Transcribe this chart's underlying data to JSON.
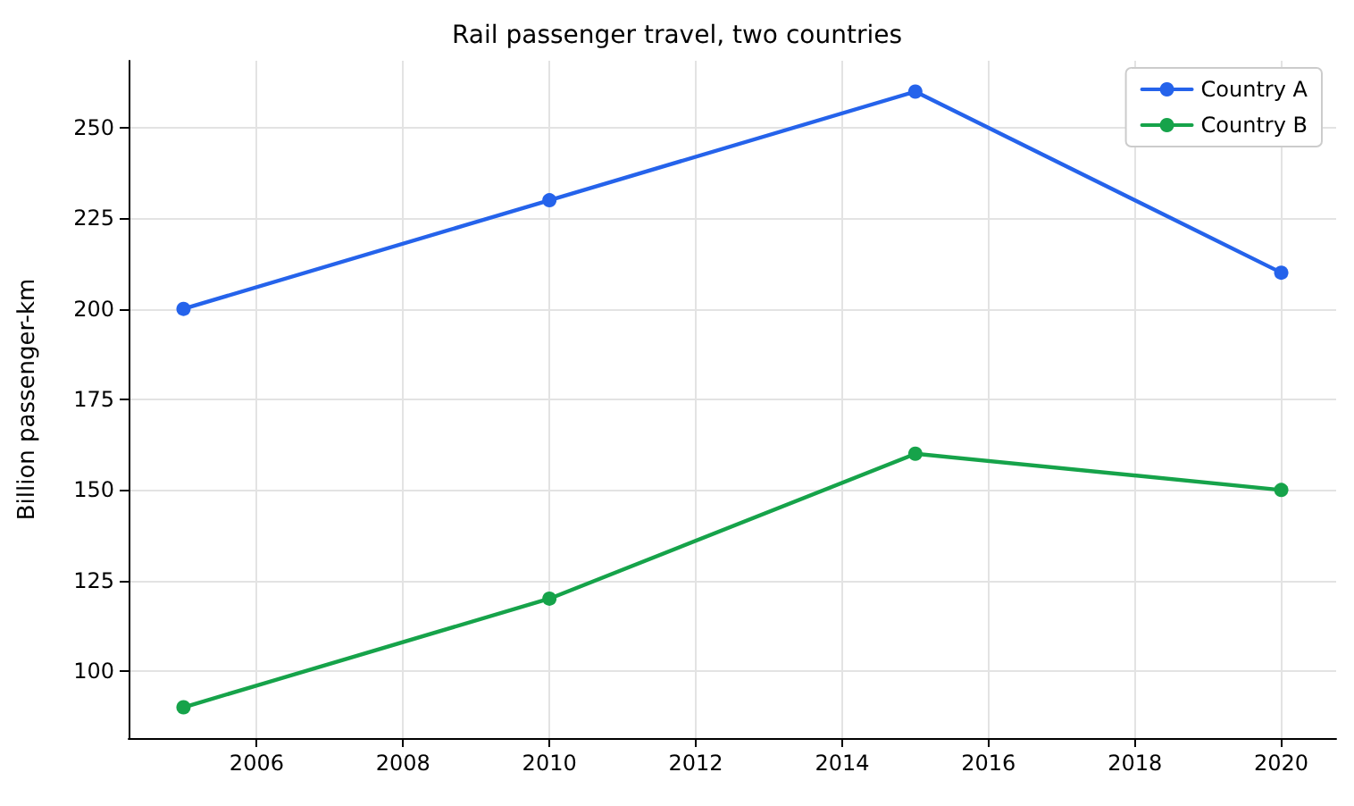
{
  "chart_data": {
    "type": "line",
    "title": "Rail passenger travel, two countries",
    "ylabel": "Billion passenger-km",
    "x": [
      2005,
      2010,
      2015,
      2020
    ],
    "series": [
      {
        "name": "Country A",
        "color": "#2563eb",
        "values": [
          200,
          230,
          260,
          210
        ]
      },
      {
        "name": "Country B",
        "color": "#16a34a",
        "values": [
          90,
          120,
          160,
          150
        ]
      }
    ],
    "xlim": [
      2004.25,
      2020.75
    ],
    "xticks": [
      2006,
      2008,
      2010,
      2012,
      2014,
      2016,
      2018,
      2020
    ],
    "ylim": [
      81.5,
      268.5
    ],
    "yticks": [
      100,
      125,
      150,
      175,
      200,
      225,
      250
    ],
    "grid": true,
    "legend": "top right",
    "marker": "circle",
    "line_style": "solid"
  }
}
